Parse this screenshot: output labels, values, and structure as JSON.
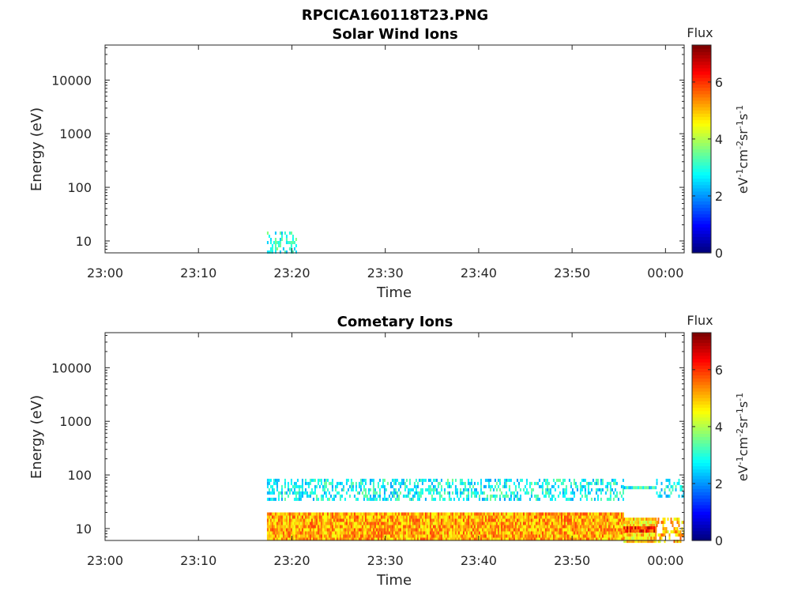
{
  "figure": {
    "main_title": "RPCICA160118T23.PNG"
  },
  "chart_data": [
    {
      "type": "heatmap",
      "title": "Solar Wind Ions",
      "xlabel": "Time",
      "ylabel": "Energy (eV)",
      "x_ticks": [
        "23:00",
        "23:10",
        "23:20",
        "23:30",
        "23:40",
        "23:50",
        "00:00"
      ],
      "x_range": [
        "23:00",
        "00:02"
      ],
      "y_scale": "log",
      "y_ticks": [
        "10",
        "100",
        "1000",
        "10000"
      ],
      "y_range": [
        6,
        45000
      ],
      "colorbar": {
        "label": "Flux",
        "unit_label": "eV-1cm-2sr-1s-1",
        "ticks": [
          "0",
          "2",
          "4",
          "6"
        ],
        "range": [
          0,
          7.3
        ],
        "colormap": "jet"
      },
      "regions": [
        {
          "t_start": "23:17:20",
          "t_end": "23:20:30",
          "e_min": 6,
          "e_max": 15,
          "flux": 3.0,
          "sparse": true
        }
      ]
    },
    {
      "type": "heatmap",
      "title": "Cometary Ions",
      "xlabel": "Time",
      "ylabel": "Energy (eV)",
      "x_ticks": [
        "23:00",
        "23:10",
        "23:20",
        "23:30",
        "23:40",
        "23:50",
        "00:00"
      ],
      "x_range": [
        "23:00",
        "00:02"
      ],
      "y_scale": "log",
      "y_ticks": [
        "10",
        "100",
        "1000",
        "10000"
      ],
      "y_range": [
        6,
        45000
      ],
      "colorbar": {
        "label": "Flux",
        "unit_label": "eV-1cm-2sr-1s-1",
        "ticks": [
          "0",
          "2",
          "4",
          "6"
        ],
        "range": [
          0,
          7.3
        ],
        "colormap": "jet"
      },
      "regions": [
        {
          "t_start": "23:17:20",
          "t_end": "23:55:30",
          "e_min": 6,
          "e_max": 20,
          "flux": 5.2,
          "sparse": false
        },
        {
          "t_start": "23:17:20",
          "t_end": "23:55:30",
          "e_min": 35,
          "e_max": 85,
          "flux": 2.8,
          "sparse": true
        },
        {
          "t_start": "23:55:30",
          "t_end": "23:59:00",
          "e_min": 6,
          "e_max": 16,
          "flux": 4.8,
          "sparse": false
        },
        {
          "t_start": "23:55:30",
          "t_end": "23:59:00",
          "e_min": 9,
          "e_max": 11,
          "flux": 6.2,
          "sparse": false
        },
        {
          "t_start": "23:55:30",
          "t_end": "23:59:00",
          "e_min": 55,
          "e_max": 62,
          "flux": 2.9,
          "sparse": false
        },
        {
          "t_start": "23:59:00",
          "t_end": "00:02:00",
          "e_min": 6,
          "e_max": 16,
          "flux": 5.0,
          "sparse": true
        },
        {
          "t_start": "23:59:00",
          "t_end": "00:02:00",
          "e_min": 40,
          "e_max": 85,
          "flux": 2.8,
          "sparse": true
        }
      ]
    }
  ]
}
